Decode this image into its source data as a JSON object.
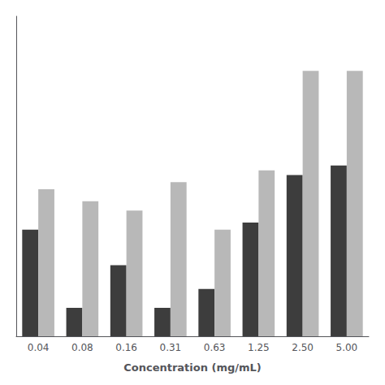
{
  "chart_data": {
    "type": "bar",
    "xlabel": "Concentration (mg/mL)",
    "categories": [
      "0.04",
      "0.08",
      "0.16",
      "0.31",
      "0.63",
      "1.25",
      "2.50",
      "5.00"
    ],
    "series": [
      {
        "color": "#3d3d3d",
        "values": [
          0.45,
          0.12,
          0.3,
          0.12,
          0.2,
          0.48,
          0.68,
          0.72
        ]
      },
      {
        "color": "#b8b8b8",
        "values": [
          0.62,
          0.57,
          0.53,
          0.65,
          0.45,
          0.7,
          1.12,
          1.12
        ]
      }
    ],
    "ylim": [
      0,
      1.35
    ],
    "grid": false,
    "tick_labels": "x"
  }
}
